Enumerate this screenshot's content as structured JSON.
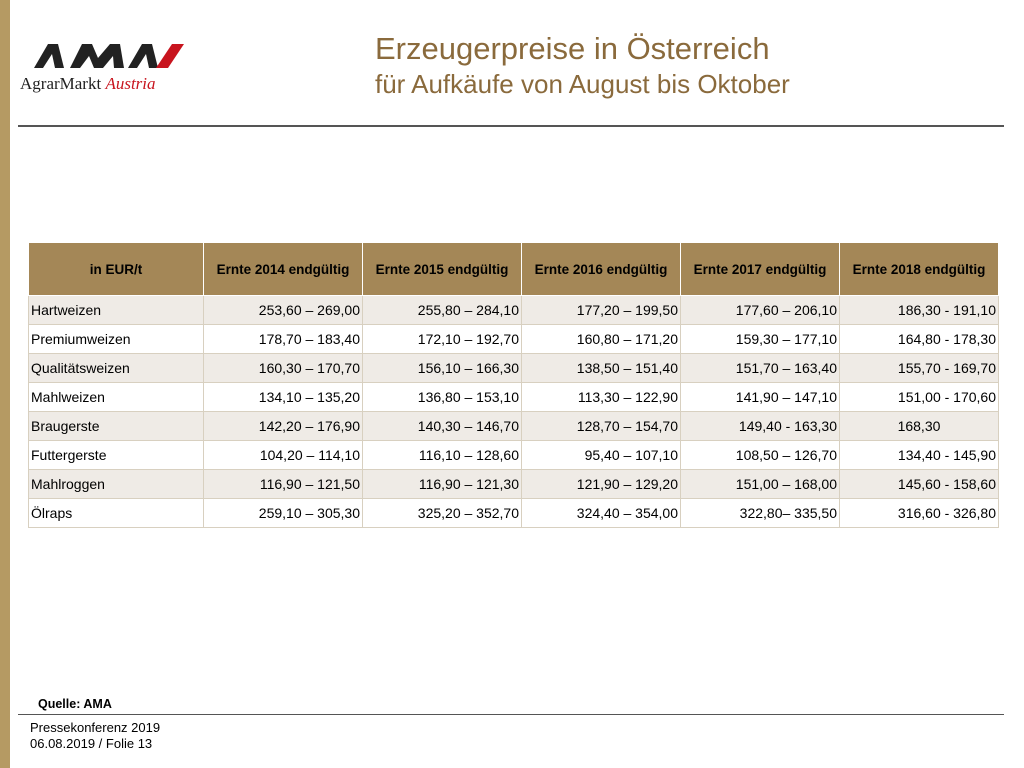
{
  "logo": {
    "text_part1": "AgrarMarkt",
    "text_part2": "Austria",
    "logo_color": "#c8141e"
  },
  "header": {
    "title": "Erzeugerpreise in Österreich",
    "subtitle": "für Aufkäufe von August bis Oktober"
  },
  "table": {
    "columns": [
      "in EUR/t",
      "Ernte 2014 endgültig",
      "Ernte 2015 endgültig",
      "Ernte 2016 endgültig",
      "Ernte 2017 endgültig",
      "Ernte 2018 endgültig"
    ],
    "rows": [
      [
        "Hartweizen",
        "253,60 – 269,00",
        "255,80 – 284,10",
        "177,20 – 199,50",
        "177,60 – 206,10",
        "186,30 - 191,10"
      ],
      [
        "Premiumweizen",
        "178,70 – 183,40",
        "172,10 – 192,70",
        "160,80 – 171,20",
        "159,30 – 177,10",
        "164,80 - 178,30"
      ],
      [
        "Qualitätsweizen",
        "160,30 – 170,70",
        "156,10 – 166,30",
        "138,50 – 151,40",
        "151,70 – 163,40",
        "155,70 - 169,70"
      ],
      [
        "Mahlweizen",
        "134,10 – 135,20",
        "136,80 – 153,10",
        "113,30 – 122,90",
        "141,90 – 147,10",
        "151,00 - 170,60"
      ],
      [
        "Braugerste",
        "142,20 – 176,90",
        "140,30 – 146,70",
        "128,70 – 154,70",
        "149,40 - 163,30",
        "168,30"
      ],
      [
        "Futtergerste",
        "104,20 – 114,10",
        "116,10 – 128,60",
        "95,40 – 107,10",
        "108,50 – 126,70",
        "134,40 - 145,90"
      ],
      [
        "Mahlroggen",
        "116,90 – 121,50",
        "116,90 – 121,30",
        "121,90 – 129,20",
        "151,00 – 168,00",
        "145,60 - 158,60"
      ],
      [
        "Ölraps",
        "259,10 – 305,30",
        "325,20 – 352,70",
        "324,40 – 354,00",
        "322,80– 335,50",
        "316,60 - 326,80"
      ]
    ],
    "header_color": "#a48757",
    "stripe_color": "#efebe6"
  },
  "source": "Quelle: AMA",
  "footer": {
    "line1": "Pressekonferenz 2019",
    "line2": "06.08.2019 / Folie 13"
  }
}
